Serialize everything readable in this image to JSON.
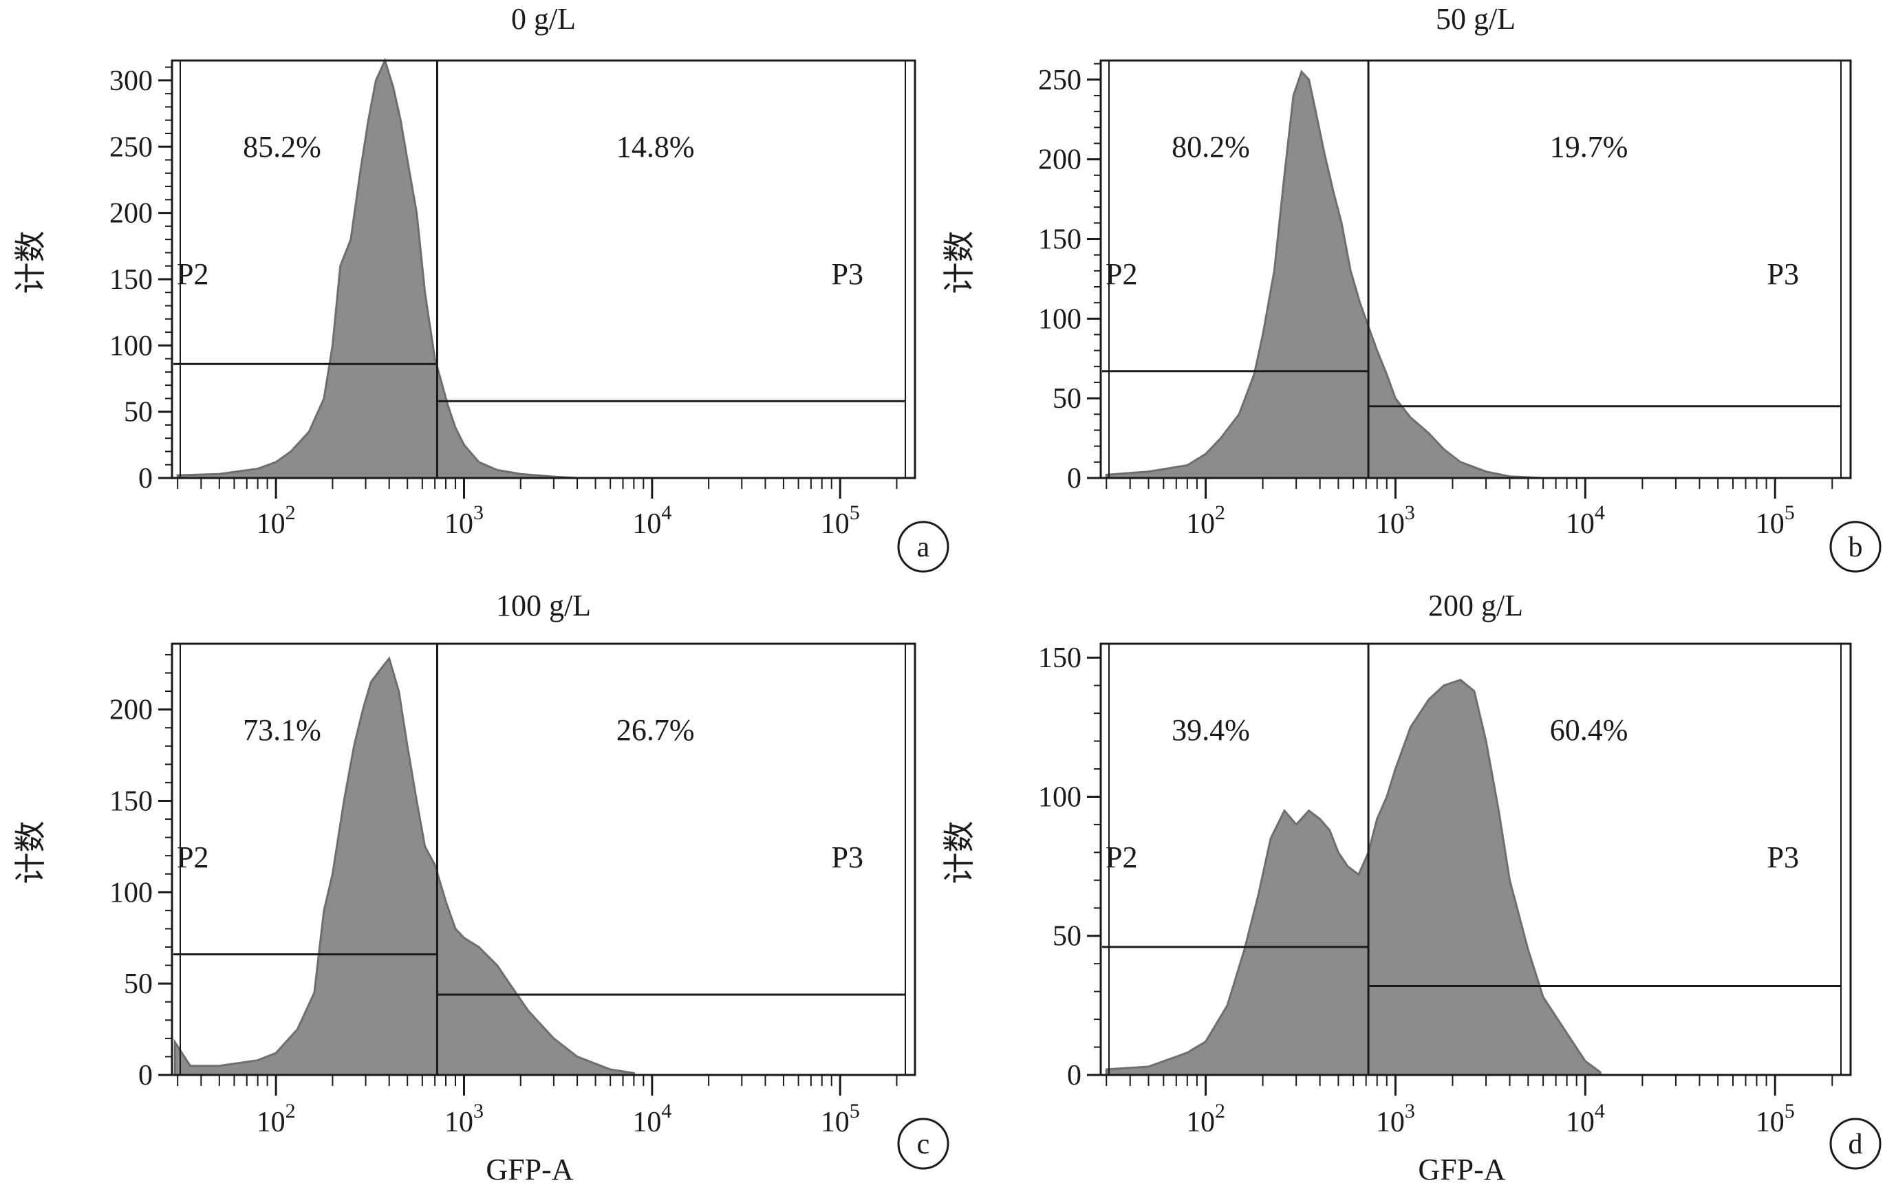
{
  "figure": {
    "panels_note_colors": {
      "histogram_fill": "#8c8c8c",
      "histogram_edge": "#6e6e6e",
      "frame": "#1a1a1a"
    }
  },
  "chart_data": [
    {
      "type": "area",
      "title": "0 g/L",
      "ylabel": "计数",
      "xlabel": "",
      "panel_label": "a",
      "x_scale": "log",
      "xlim": [
        28,
        250000
      ],
      "ylim": [
        0,
        315
      ],
      "x_ticks": [
        {
          "value": 100,
          "label_base": "10",
          "label_exp": "2"
        },
        {
          "value": 1000,
          "label_base": "10",
          "label_exp": "3"
        },
        {
          "value": 10000,
          "label_base": "10",
          "label_exp": "4"
        },
        {
          "value": 100000,
          "label_base": "10",
          "label_exp": "5"
        }
      ],
      "y_ticks": [
        0,
        50,
        100,
        150,
        200,
        250,
        300
      ],
      "gate_divider": 720,
      "gates": [
        {
          "name": "P2",
          "percent": "85.2%",
          "x_range": [
            28,
            720
          ],
          "level": 86
        },
        {
          "name": "P3",
          "percent": "14.8%",
          "x_range": [
            720,
            230000
          ],
          "level": 58
        }
      ],
      "histogram": {
        "x": [
          30,
          50,
          80,
          100,
          120,
          150,
          180,
          200,
          220,
          250,
          280,
          310,
          340,
          380,
          420,
          460,
          500,
          560,
          620,
          700,
          750,
          820,
          900,
          1000,
          1200,
          1500,
          2000,
          3000,
          4000,
          6000
        ],
        "y": [
          2,
          3,
          7,
          12,
          20,
          35,
          60,
          100,
          160,
          180,
          230,
          270,
          300,
          315,
          295,
          270,
          240,
          200,
          140,
          90,
          75,
          55,
          38,
          25,
          12,
          6,
          3,
          1,
          0,
          0
        ]
      }
    },
    {
      "type": "area",
      "title": "50 g/L",
      "ylabel": "计数",
      "xlabel": "",
      "panel_label": "b",
      "x_scale": "log",
      "xlim": [
        28,
        250000
      ],
      "ylim": [
        0,
        262
      ],
      "x_ticks": [
        {
          "value": 100,
          "label_base": "10",
          "label_exp": "2"
        },
        {
          "value": 1000,
          "label_base": "10",
          "label_exp": "3"
        },
        {
          "value": 10000,
          "label_base": "10",
          "label_exp": "4"
        },
        {
          "value": 100000,
          "label_base": "10",
          "label_exp": "5"
        }
      ],
      "y_ticks": [
        0,
        50,
        100,
        150,
        200,
        250
      ],
      "gate_divider": 720,
      "gates": [
        {
          "name": "P2",
          "percent": "80.2%",
          "x_range": [
            28,
            720
          ],
          "level": 67
        },
        {
          "name": "P3",
          "percent": "19.7%",
          "x_range": [
            720,
            230000
          ],
          "level": 45
        }
      ],
      "histogram": {
        "x": [
          30,
          50,
          80,
          100,
          120,
          150,
          180,
          200,
          230,
          260,
          290,
          320,
          350,
          380,
          420,
          470,
          520,
          580,
          650,
          720,
          800,
          900,
          1000,
          1200,
          1500,
          1800,
          2200,
          3000,
          4000,
          6000
        ],
        "y": [
          2,
          4,
          8,
          15,
          25,
          40,
          65,
          90,
          130,
          190,
          240,
          255,
          250,
          230,
          205,
          180,
          160,
          130,
          110,
          95,
          80,
          65,
          50,
          38,
          28,
          18,
          10,
          4,
          1,
          0
        ]
      }
    },
    {
      "type": "area",
      "title": "100 g/L",
      "ylabel": "计数",
      "xlabel": "GFP-A",
      "panel_label": "c",
      "x_scale": "log",
      "xlim": [
        28,
        250000
      ],
      "ylim": [
        0,
        236
      ],
      "x_ticks": [
        {
          "value": 100,
          "label_base": "10",
          "label_exp": "2"
        },
        {
          "value": 1000,
          "label_base": "10",
          "label_exp": "3"
        },
        {
          "value": 10000,
          "label_base": "10",
          "label_exp": "4"
        },
        {
          "value": 100000,
          "label_base": "10",
          "label_exp": "5"
        }
      ],
      "y_ticks": [
        0,
        50,
        100,
        150,
        200
      ],
      "gate_divider": 720,
      "gates": [
        {
          "name": "P2",
          "percent": "73.1%",
          "x_range": [
            28,
            720
          ],
          "level": 66
        },
        {
          "name": "P3",
          "percent": "26.7%",
          "x_range": [
            720,
            230000
          ],
          "level": 44
        }
      ],
      "histogram": {
        "x": [
          29,
          35,
          50,
          80,
          100,
          130,
          160,
          180,
          200,
          230,
          260,
          290,
          320,
          360,
          400,
          450,
          500,
          560,
          620,
          700,
          800,
          900,
          1000,
          1200,
          1500,
          1800,
          2200,
          3000,
          4000,
          6000,
          8000
        ],
        "y": [
          18,
          5,
          5,
          8,
          12,
          25,
          45,
          90,
          110,
          150,
          180,
          200,
          215,
          222,
          228,
          210,
          180,
          150,
          125,
          115,
          95,
          80,
          75,
          70,
          60,
          48,
          35,
          20,
          10,
          3,
          1
        ]
      }
    },
    {
      "type": "area",
      "title": "200 g/L",
      "ylabel": "计数",
      "xlabel": "GFP-A",
      "panel_label": "d",
      "x_scale": "log",
      "xlim": [
        28,
        250000
      ],
      "ylim": [
        0,
        155
      ],
      "x_ticks": [
        {
          "value": 100,
          "label_base": "10",
          "label_exp": "2"
        },
        {
          "value": 1000,
          "label_base": "10",
          "label_exp": "3"
        },
        {
          "value": 10000,
          "label_base": "10",
          "label_exp": "4"
        },
        {
          "value": 100000,
          "label_base": "10",
          "label_exp": "5"
        }
      ],
      "y_ticks": [
        0,
        50,
        100,
        150
      ],
      "gate_divider": 720,
      "gates": [
        {
          "name": "P2",
          "percent": "39.4%",
          "x_range": [
            28,
            720
          ],
          "level": 46
        },
        {
          "name": "P3",
          "percent": "60.4%",
          "x_range": [
            720,
            230000
          ],
          "level": 32
        }
      ],
      "histogram": {
        "x": [
          30,
          50,
          80,
          100,
          130,
          160,
          190,
          220,
          260,
          300,
          350,
          400,
          450,
          500,
          560,
          640,
          720,
          800,
          900,
          1000,
          1200,
          1500,
          1800,
          2200,
          2600,
          3000,
          3500,
          4000,
          5000,
          6000,
          8000,
          10000,
          12000
        ],
        "y": [
          2,
          3,
          8,
          12,
          25,
          45,
          65,
          85,
          95,
          90,
          95,
          92,
          88,
          80,
          75,
          72,
          80,
          92,
          100,
          110,
          125,
          135,
          140,
          142,
          138,
          120,
          95,
          70,
          45,
          28,
          15,
          5,
          1
        ]
      }
    }
  ]
}
